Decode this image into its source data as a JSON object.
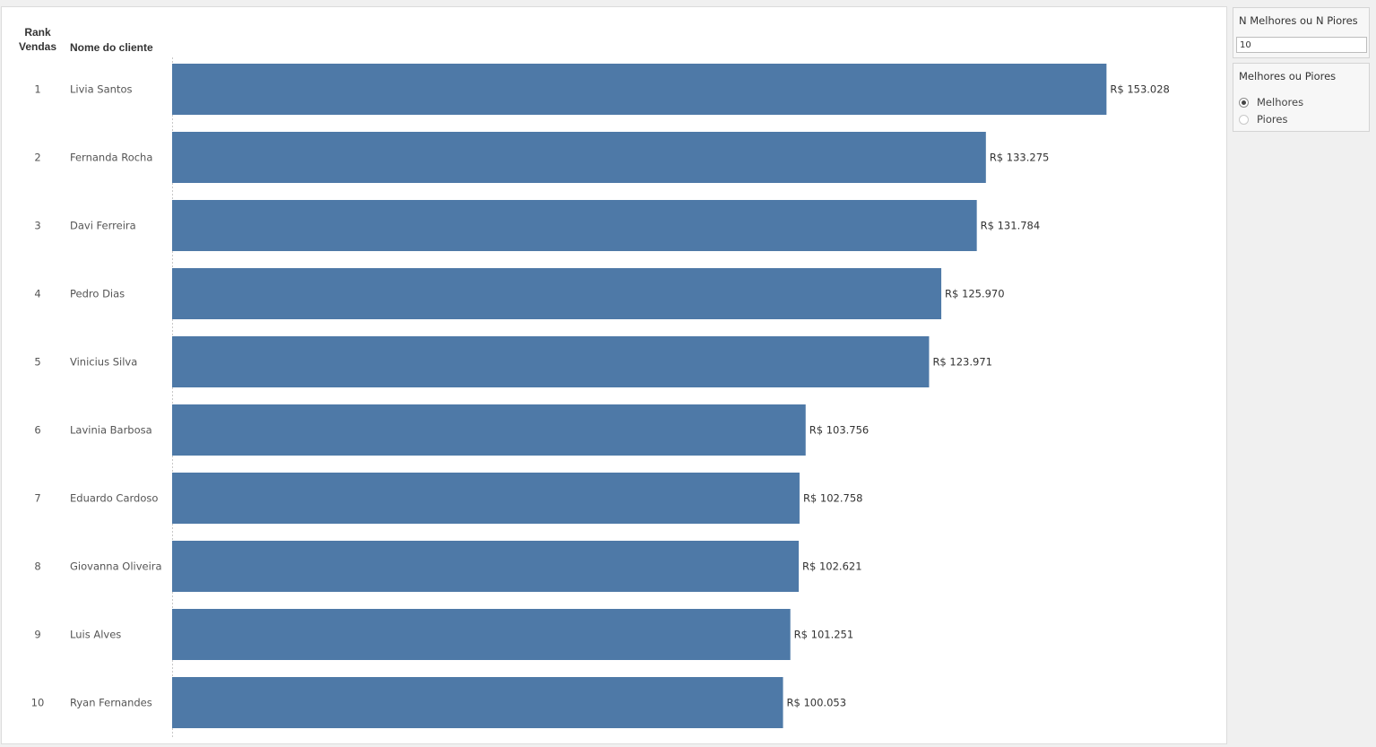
{
  "headers": {
    "rank_line1": "Rank",
    "rank_line2": "Vendas",
    "name": "Nome do cliente"
  },
  "controls": {
    "n_title": "N Melhores ou N Piores",
    "n_value": "10",
    "mp_title": "Melhores ou Piores",
    "options": [
      "Melhores",
      "Piores"
    ],
    "selected": "Melhores"
  },
  "colors": {
    "bar": "#4e79a7"
  },
  "chart_data": {
    "type": "bar",
    "orientation": "horizontal",
    "categories": [
      "Livia Santos",
      "Fernanda Rocha",
      "Davi Ferreira",
      "Pedro Dias",
      "Vinicius Silva",
      "Lavinia Barbosa",
      "Eduardo Cardoso",
      "Giovanna Oliveira",
      "Luis Alves",
      "Ryan Fernandes"
    ],
    "ranks": [
      "1",
      "2",
      "3",
      "4",
      "5",
      "6",
      "7",
      "8",
      "9",
      "10"
    ],
    "values": [
      153028,
      133275,
      131784,
      125970,
      123971,
      103756,
      102758,
      102621,
      101251,
      100053
    ],
    "value_labels": [
      "R$ 153.028",
      "R$ 133.275",
      "R$ 131.784",
      "R$ 125.970",
      "R$ 123.971",
      "R$ 103.756",
      "R$ 102.758",
      "R$ 102.621",
      "R$ 101.251",
      "R$ 100.053"
    ],
    "xlim": [
      0,
      172500
    ],
    "axis_labels_shown": false,
    "grid": false
  }
}
